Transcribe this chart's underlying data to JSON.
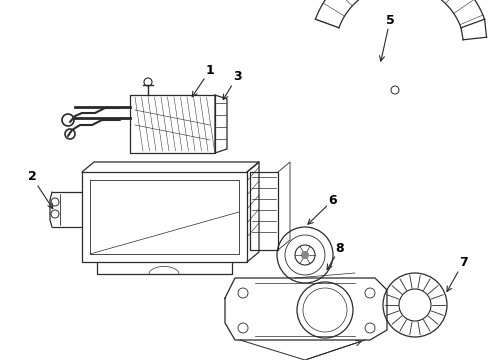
{
  "bg_color": "#ffffff",
  "line_color": "#2a2a2a",
  "label_color": "#000000",
  "figsize": [
    4.9,
    3.6
  ],
  "dpi": 100
}
